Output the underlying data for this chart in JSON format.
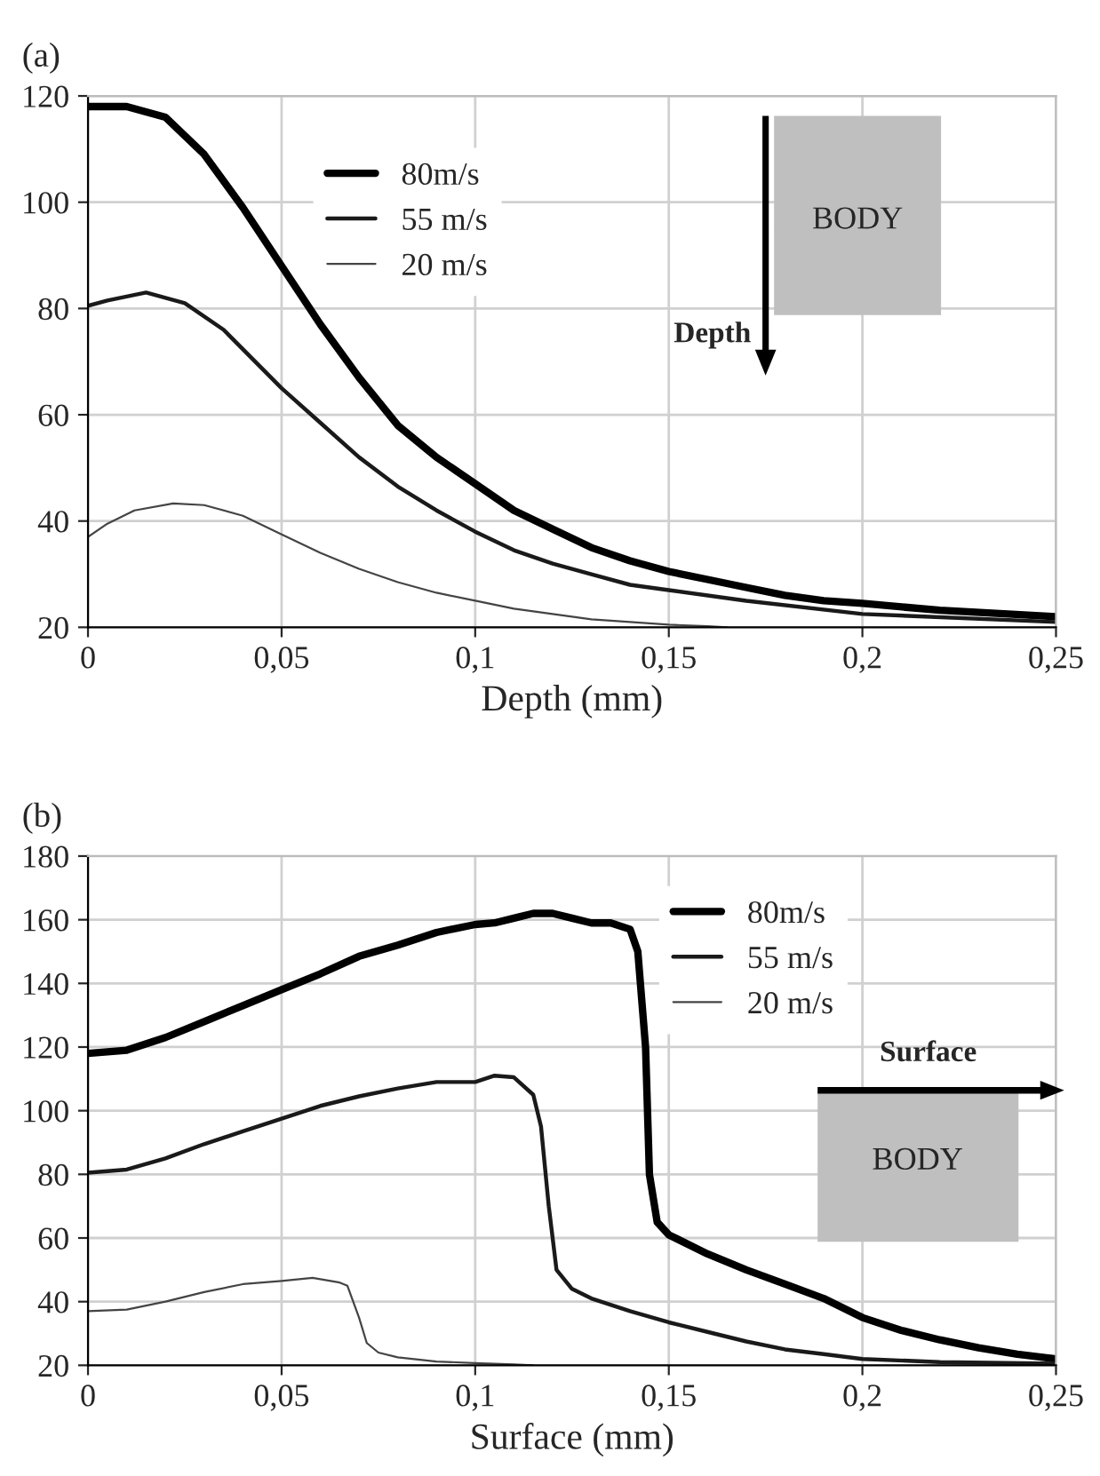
{
  "chart_data": [
    {
      "type": "line",
      "title": "(a)",
      "xlabel": "Depth (mm)",
      "xlim": [
        0,
        0.25
      ],
      "xticks": [
        {
          "value": 0,
          "label": "0"
        },
        {
          "value": 0.05,
          "label": "0,05"
        },
        {
          "value": 0.1,
          "label": "0,1"
        },
        {
          "value": 0.15,
          "label": "0,15"
        },
        {
          "value": 0.2,
          "label": "0,2"
        },
        {
          "value": 0.25,
          "label": "0,25"
        }
      ],
      "ylim": [
        20,
        120
      ],
      "yticks": [
        20,
        40,
        60,
        80,
        100,
        120
      ],
      "grid": true,
      "legend": "top",
      "line_style": "solid",
      "annotations": [
        "BODY",
        "Depth"
      ],
      "series": [
        {
          "name": "80m/s",
          "color": "#000000",
          "x": [
            0,
            0.01,
            0.02,
            0.03,
            0.04,
            0.05,
            0.06,
            0.07,
            0.08,
            0.09,
            0.1,
            0.11,
            0.12,
            0.13,
            0.14,
            0.15,
            0.16,
            0.17,
            0.18,
            0.19,
            0.2,
            0.22,
            0.25
          ],
          "values": [
            118,
            118,
            116,
            109,
            99,
            88,
            77,
            67,
            58,
            52,
            47,
            42,
            38.5,
            35,
            32.5,
            30.5,
            29,
            27.5,
            26,
            25,
            24.5,
            23.2,
            22
          ]
        },
        {
          "name": "55 m/s",
          "color": "#1a1a1a",
          "x": [
            0,
            0.005,
            0.015,
            0.025,
            0.035,
            0.05,
            0.06,
            0.07,
            0.08,
            0.09,
            0.1,
            0.11,
            0.12,
            0.13,
            0.14,
            0.15,
            0.17,
            0.2,
            0.25
          ],
          "values": [
            80.5,
            81.5,
            83,
            81,
            76,
            65,
            58.5,
            52,
            46.5,
            42,
            38,
            34.5,
            32,
            30,
            28,
            27,
            25,
            22.5,
            21
          ]
        },
        {
          "name": "20 m/s",
          "color": "#444444",
          "x": [
            0,
            0.005,
            0.012,
            0.022,
            0.03,
            0.04,
            0.05,
            0.06,
            0.07,
            0.08,
            0.09,
            0.1,
            0.11,
            0.12,
            0.13,
            0.14,
            0.15,
            0.16,
            0.165
          ],
          "values": [
            37,
            39.5,
            42,
            43.3,
            43,
            41,
            37.5,
            34,
            31,
            28.5,
            26.5,
            25,
            23.5,
            22.5,
            21.5,
            21,
            20.5,
            20.2,
            20
          ]
        }
      ]
    },
    {
      "type": "line",
      "title": "(b)",
      "xlabel": "Surface (mm)",
      "xlim": [
        0,
        0.25
      ],
      "xticks": [
        {
          "value": 0,
          "label": "0"
        },
        {
          "value": 0.05,
          "label": "0,05"
        },
        {
          "value": 0.1,
          "label": "0,1"
        },
        {
          "value": 0.15,
          "label": "0,15"
        },
        {
          "value": 0.2,
          "label": "0,2"
        },
        {
          "value": 0.25,
          "label": "0,25"
        }
      ],
      "ylim": [
        20,
        180
      ],
      "yticks": [
        20,
        40,
        60,
        80,
        100,
        120,
        140,
        160,
        180
      ],
      "grid": true,
      "legend": "top right",
      "line_style": "solid",
      "annotations": [
        "BODY",
        "Surface"
      ],
      "series": [
        {
          "name": "80m/s",
          "color": "#000000",
          "x": [
            0,
            0.01,
            0.02,
            0.03,
            0.04,
            0.05,
            0.06,
            0.07,
            0.08,
            0.09,
            0.1,
            0.105,
            0.11,
            0.115,
            0.12,
            0.125,
            0.13,
            0.135,
            0.14,
            0.142,
            0.144,
            0.145,
            0.147,
            0.15,
            0.16,
            0.17,
            0.18,
            0.19,
            0.2,
            0.21,
            0.22,
            0.23,
            0.24,
            0.25
          ],
          "values": [
            118,
            119,
            123,
            128,
            133,
            138,
            143,
            148.5,
            152,
            156,
            158.5,
            159,
            160.5,
            162,
            162,
            160.5,
            159,
            159,
            157,
            150,
            120,
            80,
            65,
            61,
            55,
            50,
            45.5,
            41,
            35,
            31,
            28,
            25.5,
            23.5,
            22
          ]
        },
        {
          "name": "55 m/s",
          "color": "#1a1a1a",
          "x": [
            0,
            0.01,
            0.02,
            0.03,
            0.04,
            0.05,
            0.06,
            0.07,
            0.08,
            0.09,
            0.1,
            0.105,
            0.11,
            0.115,
            0.117,
            0.119,
            0.121,
            0.125,
            0.13,
            0.14,
            0.15,
            0.16,
            0.17,
            0.18,
            0.19,
            0.2,
            0.22,
            0.25
          ],
          "values": [
            80.5,
            81.5,
            85,
            89.5,
            93.5,
            97.5,
            101.5,
            104.5,
            107,
            109,
            109,
            111,
            110.5,
            105,
            95,
            70,
            50,
            44,
            41,
            37,
            33.5,
            30.5,
            27.5,
            25,
            23.5,
            22,
            21,
            20.5
          ]
        },
        {
          "name": "20 m/s",
          "color": "#444444",
          "x": [
            0,
            0.01,
            0.02,
            0.03,
            0.04,
            0.05,
            0.058,
            0.065,
            0.067,
            0.07,
            0.072,
            0.075,
            0.08,
            0.09,
            0.1,
            0.11,
            0.115
          ],
          "values": [
            37,
            37.5,
            40,
            43,
            45.5,
            46.5,
            47.5,
            46,
            45,
            35,
            27,
            24,
            22.5,
            21.2,
            20.7,
            20.3,
            20
          ]
        }
      ]
    }
  ]
}
